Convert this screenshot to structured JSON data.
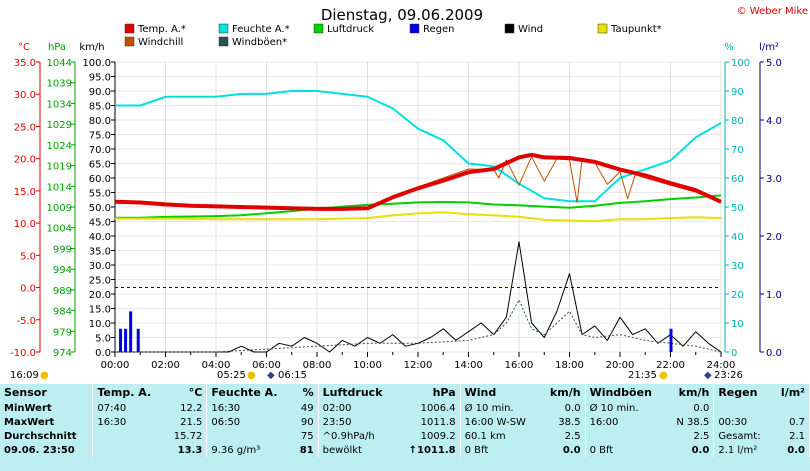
{
  "title": "Dienstag, 09.06.2009",
  "credit": "© Weber Mike",
  "colors": {
    "temp": "#e00000",
    "windchill": "#c05000",
    "feuchte": "#00e0e0",
    "luftdruck": "#00d000",
    "regen": "#0000e0",
    "wind": "#000000",
    "windboeen": "#305050",
    "taupunkt": "#e8e000",
    "axis_temp": "#e00000",
    "axis_hpa": "#00a000",
    "axis_feuchte": "#00b0b0",
    "axis_regen": "#000080"
  },
  "chart_data": {
    "type": "line",
    "title": "Dienstag, 09.06.2009",
    "x_ticks": [
      "00:00",
      "02:00",
      "04:00",
      "06:00",
      "08:00",
      "10:00",
      "12:00",
      "14:00",
      "16:00",
      "18:00",
      "20:00",
      "22:00",
      "24:00"
    ],
    "axes": {
      "temp": {
        "label": "°C",
        "ticks": [
          "35.0",
          "30.0",
          "25.0",
          "20.0",
          "15.0",
          "10.0",
          "5.0",
          "0.0",
          "-5.0",
          "-10.0"
        ],
        "ylim": [
          -10,
          35
        ]
      },
      "hpa": {
        "label": "hPa",
        "ticks": [
          "1044",
          "1039",
          "1034",
          "1029",
          "1024",
          "1019",
          "1014",
          "1009",
          "1004",
          "999",
          "994",
          "989",
          "984",
          "979",
          "974"
        ],
        "ylim": [
          974,
          1044
        ]
      },
      "kmh": {
        "label": "km/h",
        "ticks": [
          "100.0",
          "95.0",
          "90.0",
          "85.0",
          "80.0",
          "75.0",
          "70.0",
          "65.0",
          "60.0",
          "55.0",
          "50.0",
          "45.0",
          "40.0",
          "35.0",
          "30.0",
          "25.0",
          "20.0",
          "15.0",
          "10.0",
          "5.0",
          "0.0"
        ],
        "ylim": [
          0,
          100
        ]
      },
      "feuchte": {
        "label": "%",
        "ticks": [
          "100",
          "90",
          "80",
          "70",
          "60",
          "50",
          "40",
          "30",
          "20",
          "10",
          "0"
        ],
        "ylim": [
          0,
          100
        ]
      },
      "regen": {
        "label": "l/m²",
        "ticks": [
          "5.0",
          "4.0",
          "3.0",
          "2.0",
          "1.0",
          "0.0"
        ],
        "ylim": [
          0,
          5
        ]
      }
    },
    "legend": [
      {
        "name": "Temp. A.*",
        "color": "#e00000"
      },
      {
        "name": "Feuchte A.*",
        "color": "#00e0e0"
      },
      {
        "name": "Luftdruck",
        "color": "#00d000"
      },
      {
        "name": "Regen",
        "color": "#0000e0"
      },
      {
        "name": "Wind",
        "color": "#000000"
      },
      {
        "name": "Taupunkt*",
        "color": "#e8e000"
      },
      {
        "name": "Windchill",
        "color": "#c05000"
      },
      {
        "name": "Windböen*",
        "color": "#305050"
      }
    ],
    "series": [
      {
        "name": "Temp. A.*",
        "axis": "temp",
        "x": [
          0,
          1,
          2,
          3,
          4,
          5,
          6,
          7,
          8,
          9,
          10,
          11,
          12,
          13,
          14,
          15,
          16,
          16.5,
          17,
          18,
          19,
          20,
          21,
          22,
          23,
          24
        ],
        "values": [
          13.3,
          13.2,
          12.9,
          12.7,
          12.6,
          12.5,
          12.4,
          12.3,
          12.2,
          12.2,
          12.3,
          14.0,
          15.4,
          16.6,
          17.9,
          18.4,
          20.2,
          20.6,
          20.2,
          20.1,
          19.5,
          18.3,
          17.4,
          16.2,
          15.1,
          13.3
        ]
      },
      {
        "name": "Windchill",
        "axis": "temp",
        "x": [
          0,
          1,
          2,
          3,
          4,
          5,
          6,
          7,
          8,
          9,
          10,
          11,
          12,
          13,
          14,
          15,
          15.2,
          15.5,
          16,
          16.5,
          17,
          17.5,
          18,
          18.3,
          18.5,
          19,
          19.5,
          20,
          20.3,
          20.6,
          21,
          22,
          23,
          24
        ],
        "values": [
          13.2,
          13.1,
          12.9,
          12.7,
          12.6,
          12.5,
          12.3,
          12.2,
          12.1,
          12.1,
          12.2,
          14.2,
          15.6,
          17.0,
          18.4,
          18.3,
          17.0,
          19.8,
          15.9,
          20.3,
          16.5,
          20.0,
          19.8,
          13.2,
          20.0,
          19.4,
          16.0,
          18.0,
          13.8,
          17.5,
          17.0,
          15.9,
          14.8,
          13.2
        ]
      },
      {
        "name": "Feuchte A.*",
        "axis": "feuchte",
        "x": [
          0,
          1,
          2,
          3,
          4,
          5,
          6,
          7,
          8,
          9,
          10,
          11,
          12,
          13,
          14,
          15,
          16,
          17,
          18,
          19,
          20,
          21,
          22,
          23,
          24
        ],
        "values": [
          85,
          85,
          88,
          88,
          88,
          89,
          89,
          90,
          90,
          89,
          88,
          84,
          77,
          73,
          65,
          64,
          58,
          53,
          52,
          52,
          60,
          63,
          66,
          74,
          79
        ]
      },
      {
        "name": "Luftdruck",
        "axis": "hpa",
        "x": [
          0,
          1,
          2,
          3,
          4,
          5,
          6,
          7,
          8,
          9,
          10,
          11,
          12,
          13,
          14,
          15,
          16,
          17,
          18,
          19,
          20,
          21,
          22,
          23,
          24
        ],
        "values": [
          1006.4,
          1006.4,
          1006.6,
          1006.7,
          1006.8,
          1007.0,
          1007.5,
          1008.0,
          1008.6,
          1009.1,
          1009.5,
          1009.8,
          1010.1,
          1010.2,
          1010.1,
          1009.6,
          1009.4,
          1009.1,
          1008.8,
          1009.3,
          1010.0,
          1010.4,
          1010.9,
          1011.3,
          1011.8
        ]
      },
      {
        "name": "Taupunkt*",
        "axis": "temp",
        "x": [
          0,
          1,
          2,
          3,
          4,
          5,
          6,
          7,
          8,
          9,
          10,
          11,
          12,
          13,
          14,
          15,
          16,
          17,
          18,
          19,
          20,
          21,
          22,
          23,
          24
        ],
        "values": [
          10.7,
          10.7,
          10.7,
          10.7,
          10.6,
          10.6,
          10.6,
          10.6,
          10.6,
          10.7,
          10.8,
          11.2,
          11.5,
          11.7,
          11.4,
          11.2,
          11.0,
          10.5,
          10.4,
          10.3,
          10.6,
          10.6,
          10.8,
          10.9,
          10.8
        ]
      },
      {
        "name": "Wind",
        "axis": "kmh",
        "x": [
          0,
          0.5,
          1,
          1.5,
          2,
          2.5,
          3,
          3.5,
          4,
          4.5,
          5,
          5.5,
          6,
          6.5,
          7,
          7.5,
          8,
          8.5,
          9,
          9.5,
          10,
          10.5,
          11,
          11.5,
          12,
          12.5,
          13,
          13.5,
          14,
          14.5,
          15,
          15.5,
          16,
          16.5,
          17,
          17.5,
          18,
          18.5,
          19,
          19.5,
          20,
          20.5,
          21,
          21.5,
          22,
          22.5,
          23,
          23.5,
          24
        ],
        "values": [
          0,
          0,
          0,
          0,
          0,
          0,
          0,
          0,
          0,
          0,
          2,
          0,
          0,
          3,
          2,
          5,
          3,
          0,
          4,
          2,
          5,
          3,
          6,
          2,
          3,
          5,
          8,
          4,
          7,
          10,
          6,
          12,
          38,
          10,
          5,
          14,
          27,
          6,
          9,
          4,
          12,
          6,
          8,
          3,
          6,
          2,
          7,
          3,
          0
        ]
      },
      {
        "name": "Windböen*",
        "axis": "kmh",
        "x": [
          0,
          2,
          4,
          6,
          8,
          10,
          12,
          14,
          15,
          15.5,
          16,
          16.5,
          17,
          17.5,
          18,
          18.5,
          19,
          20,
          21,
          22,
          23,
          24
        ],
        "values": [
          0,
          0,
          0,
          1,
          2,
          3,
          3,
          4,
          6,
          10,
          18,
          8,
          6,
          10,
          14,
          6,
          5,
          6,
          4,
          3,
          2,
          0
        ]
      },
      {
        "name": "Regen",
        "axis": "regen",
        "type": "bar",
        "x": [
          0.2,
          0.4,
          0.6,
          0.9,
          22.0
        ],
        "values": [
          0.4,
          0.4,
          0.7,
          0.4,
          0.4
        ]
      }
    ],
    "reference_lines": [
      {
        "axis": "temp",
        "value": 0,
        "style": "dashed"
      }
    ],
    "sun_markers": {
      "sunrise": "05:25",
      "sunset": "21:35",
      "moonrise": "06:15",
      "moonset": "23:26",
      "left_time": "16:09"
    }
  },
  "stats": {
    "headers": [
      "Sensor",
      "Temp. A.",
      "°C",
      "Feuchte A.",
      "%",
      "Luftdruck",
      "hPa",
      "Wind",
      "km/h",
      "Windböen",
      "km/h",
      "Regen",
      "l/m²"
    ],
    "rows": [
      [
        "MinWert",
        "07:40",
        "12.2",
        "16:30",
        "49",
        "02:00",
        "1006.4",
        "Ø 10 min.",
        "0.0",
        "Ø 10 min.",
        "0.0",
        "",
        ""
      ],
      [
        "MaxWert",
        "16:30",
        "21.5",
        "06:50",
        "90",
        "23:50",
        "1011.8",
        "16:00  W-SW",
        "38.5",
        "16:00",
        "N 38.5",
        "00:30",
        "0.7"
      ],
      [
        "Durchschnitt",
        "",
        "15.72",
        "",
        "75",
        "^0.9hPa/h",
        "1009.2",
        "60.1 km",
        "2.5",
        "",
        "2.5",
        "Gesamt:",
        "2.1"
      ],
      [
        "09.06.  23:50",
        "",
        "13.3",
        "9.36 g/m³",
        "81",
        "bewölkt",
        "↑1011.8",
        "0 Bft",
        "0.0",
        "0 Bft",
        "0.0",
        "2.1 l/m²",
        "0.0"
      ]
    ]
  }
}
